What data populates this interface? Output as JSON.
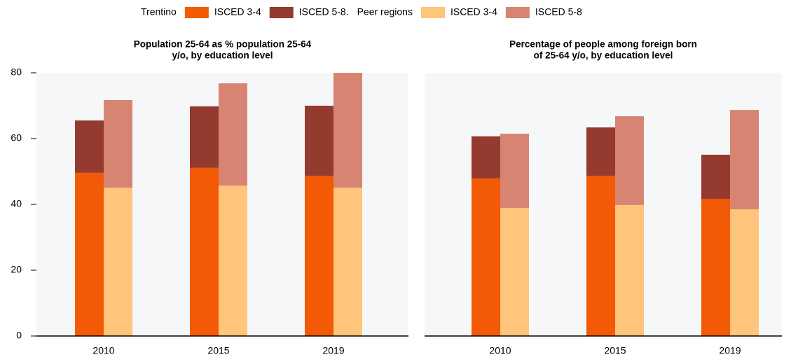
{
  "legend": [
    {
      "group": "Trentino",
      "series": [
        {
          "name": "ISCED 3-4",
          "color": "#f25a05"
        },
        {
          "name": "ISCED 5-8.",
          "color": "#943a2e"
        }
      ]
    },
    {
      "group": "Peer regions",
      "series": [
        {
          "name": "ISCED 3-4",
          "color": "#ffc57a"
        },
        {
          "name": "ISCED 5-8",
          "color": "#d88472"
        }
      ]
    }
  ],
  "chart_data": [
    {
      "type": "bar",
      "title": [
        "Population 25-64 as % population 25-64",
        "y/o, by education level"
      ],
      "categories": [
        "2010",
        "2015",
        "2019"
      ],
      "stacks": [
        [
          {
            "values": [
              49.6,
              51.1,
              48.7
            ]
          },
          {
            "values": [
              15.9,
              18.7,
              21.3
            ]
          }
        ],
        [
          {
            "values": [
              45.1,
              45.7,
              45.1
            ]
          },
          {
            "values": [
              26.6,
              31.1,
              34.9
            ]
          }
        ]
      ],
      "ylim": [
        0,
        80
      ],
      "yticks": [
        0,
        20,
        40,
        60,
        80
      ]
    },
    {
      "type": "bar",
      "title": [
        "Percentage of people among foreign born",
        "of 25-64 y/o, by education level"
      ],
      "categories": [
        "2010",
        "2015",
        "2019"
      ],
      "stacks": [
        [
          {
            "values": [
              47.9,
              48.7,
              41.7
            ]
          },
          {
            "values": [
              12.8,
              14.7,
              13.4
            ]
          }
        ],
        [
          {
            "values": [
              38.9,
              39.8,
              38.5
            ]
          },
          {
            "values": [
              22.6,
              27.0,
              30.2
            ]
          }
        ]
      ],
      "ylim": [
        0,
        80
      ]
    }
  ]
}
